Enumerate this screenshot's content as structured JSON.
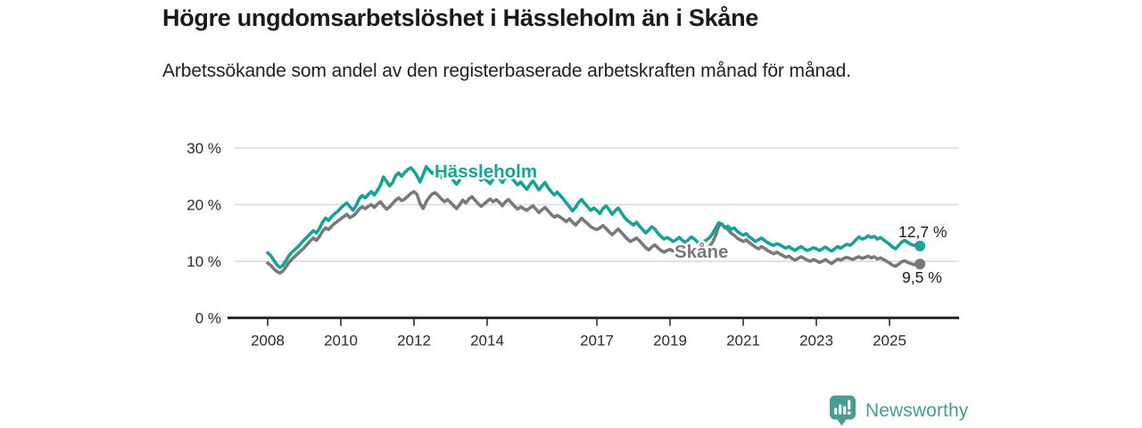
{
  "header": {
    "title": "Högre ungdomsarbetslöshet i Hässleholm än i Skåne",
    "subtitle": "Arbetssökande som andel av den registerbaserade arbetskraften månad för månad."
  },
  "chart_data": {
    "type": "line",
    "frequency": "monthly",
    "start": "2008-01",
    "end": "2025-11",
    "unit": "%",
    "ylim": [
      0,
      30
    ],
    "grid": "horizontal",
    "yticks": [
      {
        "value": 0,
        "label": "0 %"
      },
      {
        "value": 10,
        "label": "10 %"
      },
      {
        "value": 20,
        "label": "20 %"
      },
      {
        "value": 30,
        "label": "30 %"
      }
    ],
    "xticks": [
      {
        "year": 2008,
        "label": "2008"
      },
      {
        "year": 2010,
        "label": "2010"
      },
      {
        "year": 2012,
        "label": "2012"
      },
      {
        "year": 2014,
        "label": "2014"
      },
      {
        "year": 2017,
        "label": "2017"
      },
      {
        "year": 2019,
        "label": "2019"
      },
      {
        "year": 2021,
        "label": "2021"
      },
      {
        "year": 2023,
        "label": "2023"
      },
      {
        "year": 2025,
        "label": "2025"
      }
    ],
    "series": [
      {
        "name": "Hässleholm",
        "color": "#17a295",
        "end_label": "12,7 %",
        "end_value": 12.7,
        "values": [
          11.5,
          11.0,
          10.2,
          9.4,
          8.9,
          9.3,
          10.1,
          11.0,
          11.6,
          12.1,
          12.6,
          13.2,
          13.8,
          14.3,
          14.9,
          15.4,
          15.0,
          15.8,
          16.9,
          17.6,
          17.2,
          17.9,
          18.4,
          18.8,
          19.4,
          19.9,
          20.3,
          19.6,
          19.0,
          19.8,
          21.0,
          21.6,
          21.2,
          21.8,
          22.3,
          21.7,
          22.5,
          23.4,
          24.9,
          24.1,
          23.3,
          23.9,
          25.1,
          25.6,
          25.0,
          25.7,
          26.2,
          26.5,
          25.9,
          25.1,
          24.0,
          25.3,
          26.7,
          26.1,
          25.5,
          26.0,
          25.4,
          24.8,
          25.2,
          25.7,
          24.9,
          24.2,
          23.6,
          24.4,
          25.3,
          24.7,
          25.8,
          26.3,
          25.6,
          24.9,
          24.3,
          24.8,
          24.2,
          23.7,
          24.5,
          25.2,
          24.6,
          23.9,
          24.8,
          25.4,
          24.7,
          24.1,
          23.5,
          24.0,
          23.3,
          22.7,
          23.5,
          24.2,
          23.4,
          22.6,
          23.3,
          23.9,
          23.0,
          22.3,
          21.7,
          22.2,
          21.6,
          21.0,
          20.3,
          19.6,
          18.9,
          19.5,
          20.4,
          20.9,
          20.2,
          19.6,
          19.0,
          19.4,
          19.0,
          18.4,
          19.3,
          19.8,
          19.1,
          18.3,
          18.9,
          19.4,
          18.6,
          17.8,
          17.2,
          16.8,
          16.4,
          16.9,
          16.2,
          15.6,
          15.0,
          15.5,
          16.1,
          15.7,
          15.0,
          14.4,
          13.9,
          14.2,
          13.9,
          13.5,
          13.8,
          14.2,
          13.7,
          13.3,
          13.8,
          14.3,
          13.9,
          13.4,
          13.1,
          13.4,
          13.8,
          14.2,
          14.9,
          15.9,
          16.8,
          16.5,
          15.9,
          16.2,
          15.6,
          15.9,
          15.3,
          14.9,
          14.6,
          14.9,
          14.3,
          13.9,
          13.5,
          13.8,
          14.1,
          13.7,
          13.3,
          13.0,
          12.8,
          13.1,
          12.9,
          12.6,
          12.3,
          12.6,
          12.2,
          11.9,
          12.3,
          12.6,
          12.2,
          11.9,
          12.1,
          12.4,
          12.2,
          11.9,
          12.2,
          12.5,
          12.1,
          11.8,
          12.2,
          12.6,
          12.3,
          12.7,
          13.0,
          12.8,
          13.2,
          13.8,
          14.3,
          13.9,
          14.1,
          14.5,
          14.2,
          14.4,
          13.9,
          14.2,
          13.8,
          13.4,
          13.0,
          12.5,
          12.2,
          12.8,
          13.4,
          13.7,
          13.3,
          13.0,
          12.8,
          12.9,
          12.7
        ]
      },
      {
        "name": "Skåne",
        "color": "#797979",
        "end_label": "9,5 %",
        "end_value": 9.5,
        "values": [
          9.7,
          9.3,
          8.7,
          8.2,
          7.9,
          8.3,
          9.0,
          9.8,
          10.4,
          10.9,
          11.4,
          11.9,
          12.4,
          13.0,
          13.6,
          14.1,
          13.7,
          14.4,
          15.3,
          15.9,
          15.6,
          16.2,
          16.7,
          17.1,
          17.5,
          17.9,
          18.3,
          17.7,
          18.0,
          18.5,
          19.2,
          19.6,
          19.3,
          19.7,
          20.0,
          19.5,
          20.1,
          20.5,
          19.8,
          19.2,
          19.6,
          20.2,
          20.8,
          21.2,
          20.7,
          21.0,
          21.5,
          22.0,
          22.3,
          21.8,
          20.2,
          19.3,
          20.5,
          21.3,
          21.9,
          22.1,
          21.6,
          21.0,
          20.5,
          20.9,
          20.4,
          19.8,
          19.3,
          20.0,
          20.8,
          20.3,
          21.0,
          21.4,
          20.8,
          20.2,
          19.7,
          20.1,
          20.6,
          21.0,
          20.5,
          20.9,
          20.4,
          19.8,
          20.5,
          20.9,
          20.3,
          19.7,
          19.2,
          19.6,
          19.3,
          19.0,
          19.4,
          19.8,
          19.2,
          18.6,
          19.1,
          19.5,
          18.9,
          18.3,
          17.8,
          18.1,
          17.8,
          17.4,
          17.0,
          17.5,
          16.9,
          16.4,
          17.0,
          17.6,
          17.1,
          16.6,
          16.1,
          15.8,
          15.6,
          15.9,
          16.3,
          15.8,
          15.2,
          14.7,
          15.2,
          15.7,
          15.1,
          14.5,
          13.9,
          13.5,
          13.8,
          14.1,
          13.6,
          13.0,
          12.4,
          12.0,
          12.5,
          12.9,
          12.4,
          11.9,
          11.6,
          11.9,
          12.1,
          11.8,
          12.0,
          12.3,
          11.9,
          11.5,
          11.8,
          12.2,
          11.9,
          11.6,
          11.8,
          12.0,
          12.3,
          12.7,
          13.4,
          14.6,
          16.3,
          16.6,
          16.0,
          15.6,
          15.0,
          14.6,
          14.1,
          13.8,
          13.5,
          13.8,
          13.3,
          12.9,
          12.5,
          12.2,
          12.6,
          12.3,
          11.9,
          11.6,
          11.3,
          11.6,
          11.3,
          11.0,
          10.7,
          10.9,
          10.5,
          10.2,
          10.5,
          10.8,
          10.5,
          10.2,
          10.0,
          10.3,
          10.1,
          9.8,
          10.0,
          10.3,
          9.9,
          9.6,
          10.0,
          10.4,
          10.2,
          10.5,
          10.7,
          10.5,
          10.3,
          10.6,
          10.8,
          10.5,
          10.7,
          10.9,
          10.6,
          10.8,
          10.4,
          10.6,
          10.3,
          10.0,
          9.7,
          9.3,
          9.1,
          9.5,
          9.9,
          10.1,
          9.8,
          9.6,
          9.4,
          9.6,
          9.5
        ]
      }
    ],
    "colors": {
      "axis": "#2d2d2d",
      "gridline": "#d9d9d9",
      "tick_label": "#2b2b2b",
      "value_label": "#1a1a1a"
    }
  },
  "footer": {
    "brand": "Newsworthy",
    "brand_color": "#4a9c93",
    "icon": "newsworthy-speech-bubble-bars-icon"
  }
}
